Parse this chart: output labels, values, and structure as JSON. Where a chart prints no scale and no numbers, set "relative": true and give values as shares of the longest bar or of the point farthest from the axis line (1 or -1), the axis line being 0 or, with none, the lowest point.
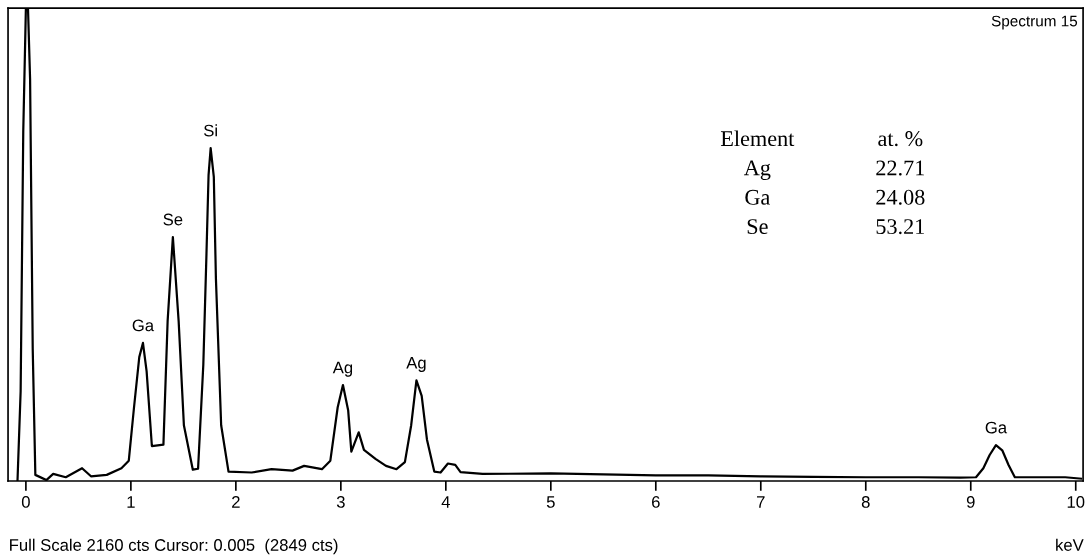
{
  "chart_data": {
    "type": "line",
    "title": "Spectrum 15",
    "xlabel": "keV",
    "relative": true,
    "color": "#000000",
    "x": [
      -0.08,
      -0.05,
      -0.025,
      0.0,
      0.02,
      0.04,
      0.065,
      0.09,
      0.195,
      0.26,
      0.38,
      0.535,
      0.62,
      0.77,
      0.91,
      0.98,
      1.03,
      1.08,
      1.115,
      1.15,
      1.2,
      1.31,
      1.35,
      1.4,
      1.455,
      1.505,
      1.59,
      1.64,
      1.69,
      1.72,
      1.74,
      1.76,
      1.79,
      1.81,
      1.86,
      1.93,
      2.15,
      2.34,
      2.54,
      2.65,
      2.82,
      2.9,
      2.97,
      3.02,
      3.07,
      3.1,
      3.17,
      3.22,
      3.33,
      3.43,
      3.53,
      3.61,
      3.67,
      3.72,
      3.77,
      3.82,
      3.89,
      3.95,
      4.02,
      4.09,
      4.14,
      4.35,
      5.0,
      5.5,
      6.0,
      6.5,
      7.0,
      7.5,
      8.0,
      8.5,
      8.9,
      9.05,
      9.12,
      9.18,
      9.24,
      9.3,
      9.36,
      9.42,
      9.6,
      9.9,
      10.05
    ],
    "values": [
      0.0,
      0.19,
      0.74,
      1.0,
      1.0,
      0.85,
      0.28,
      0.013,
      0.002,
      0.015,
      0.008,
      0.027,
      0.01,
      0.013,
      0.027,
      0.043,
      0.156,
      0.262,
      0.292,
      0.232,
      0.074,
      0.077,
      0.338,
      0.516,
      0.338,
      0.118,
      0.024,
      0.026,
      0.246,
      0.48,
      0.647,
      0.704,
      0.643,
      0.428,
      0.118,
      0.02,
      0.018,
      0.025,
      0.022,
      0.032,
      0.025,
      0.043,
      0.156,
      0.203,
      0.149,
      0.062,
      0.103,
      0.066,
      0.047,
      0.032,
      0.025,
      0.04,
      0.118,
      0.213,
      0.18,
      0.088,
      0.02,
      0.018,
      0.037,
      0.034,
      0.019,
      0.015,
      0.016,
      0.014,
      0.012,
      0.012,
      0.01,
      0.009,
      0.008,
      0.008,
      0.007,
      0.008,
      0.027,
      0.055,
      0.076,
      0.065,
      0.034,
      0.008,
      0.008,
      0.008,
      0.005
    ],
    "xlim": [
      -0.17,
      10.07
    ],
    "xticks": [
      0,
      1,
      2,
      3,
      4,
      5,
      6,
      7,
      8,
      9,
      10
    ],
    "annotations": [
      {
        "text": "Ga",
        "x": 1.115,
        "y": 0.292
      },
      {
        "text": "Se",
        "x": 1.4,
        "y": 0.516
      },
      {
        "text": "Si",
        "x": 1.76,
        "y": 0.704
      },
      {
        "text": "Ag",
        "x": 3.02,
        "y": 0.203
      },
      {
        "text": "Ag",
        "x": 3.72,
        "y": 0.213
      },
      {
        "text": "Ga",
        "x": 9.24,
        "y": 0.076
      },
      "Full Scale 2160 cts Cursor: 0.005  (2849 cts)",
      "Element",
      "at. %",
      "Ag",
      "22.71",
      "Ga",
      "24.08",
      "Se",
      "53.21"
    ],
    "grid": false,
    "legend": false
  }
}
